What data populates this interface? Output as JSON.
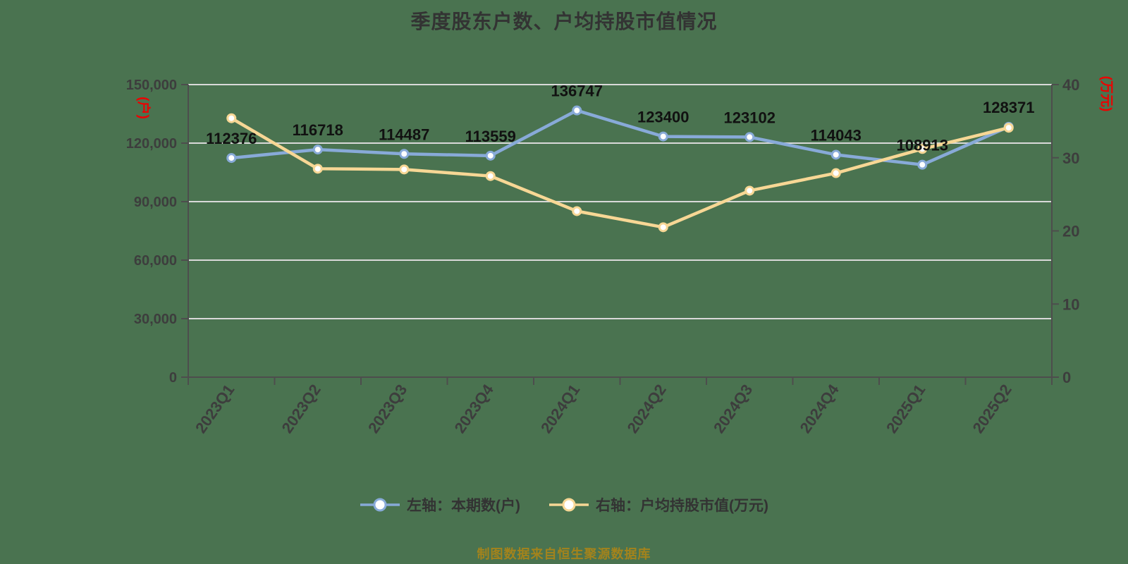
{
  "title": "季度股东户数、户均持股市值情况",
  "footer": "制图数据来自恒生聚源数据库",
  "left_axis": {
    "unit_label": "(户)",
    "ticks": [
      {
        "v": 0,
        "label": "0"
      },
      {
        "v": 30000,
        "label": "30,000"
      },
      {
        "v": 60000,
        "label": "60,000"
      },
      {
        "v": 90000,
        "label": "90,000"
      },
      {
        "v": 120000,
        "label": "120,000"
      },
      {
        "v": 150000,
        "label": "150,000"
      }
    ],
    "min": 0,
    "max": 150000
  },
  "right_axis": {
    "unit_label": "(万元)",
    "ticks": [
      {
        "v": 0,
        "label": "0"
      },
      {
        "v": 10,
        "label": "10"
      },
      {
        "v": 20,
        "label": "20"
      },
      {
        "v": 30,
        "label": "30"
      },
      {
        "v": 40,
        "label": "40"
      }
    ],
    "min": 0,
    "max": 40
  },
  "legend": [
    {
      "label": "左轴：本期数(户)",
      "color": "#88aad8"
    },
    {
      "label": "右轴：户均持股市值(万元)",
      "color": "#f7d795"
    }
  ],
  "colors": {
    "background": "#4a7350",
    "blue_line": "#88aad8",
    "yellow_line": "#f7d795",
    "marker_fill": "#ffffff",
    "gridline": "#d9d9d9",
    "axis": "#4d4d4d",
    "tick_text": "#3d3d3d",
    "data_label": "#111111",
    "unit_text": "#ee0000",
    "footer_text": "#a3831c",
    "title_text": "#333333"
  },
  "chart_data": {
    "type": "line",
    "title": "季度股东户数、户均持股市值情况",
    "categories": [
      "2023Q1",
      "2023Q2",
      "2023Q3",
      "2023Q4",
      "2024Q1",
      "2024Q2",
      "2024Q3",
      "2024Q4",
      "2025Q1",
      "2025Q2"
    ],
    "series": [
      {
        "name": "左轴：本期数(户)",
        "axis": "left",
        "color": "#88aad8",
        "values": [
          112376,
          116718,
          114487,
          113559,
          136747,
          123400,
          123102,
          114043,
          108913,
          128371
        ],
        "show_data_labels": true
      },
      {
        "name": "右轴：户均持股市值(万元)",
        "axis": "right",
        "color": "#f7d795",
        "values": [
          35.4,
          28.5,
          28.4,
          27.5,
          22.7,
          20.5,
          25.5,
          27.9,
          31.2,
          34.1
        ],
        "show_data_labels": false
      }
    ],
    "left_ylim": [
      0,
      150000
    ],
    "right_ylim": [
      0,
      40
    ],
    "grid": true,
    "legend_position": "bottom"
  }
}
